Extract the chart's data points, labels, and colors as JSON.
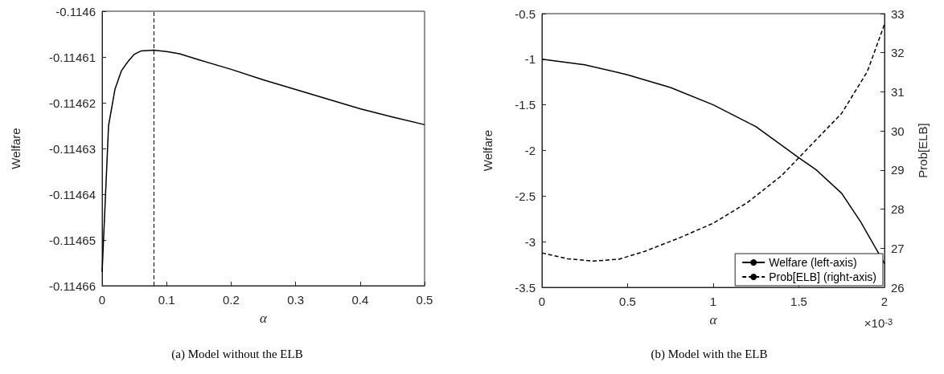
{
  "chart_data": [
    {
      "type": "line",
      "title": "(a) Model without the ELB",
      "xlabel": "α",
      "ylabel": "Welfare",
      "xlim": [
        0,
        0.5
      ],
      "xticks": [
        0,
        0.1,
        0.2,
        0.3,
        0.4,
        0.5
      ],
      "ylim": [
        -0.11466,
        -0.1146
      ],
      "yticks": [
        -0.11466,
        -0.11465,
        -0.11464,
        -0.11463,
        -0.11462,
        -0.11461,
        -0.1146
      ],
      "grid": false,
      "legend": false,
      "marker": "none",
      "series": [
        {
          "color": "#000000",
          "x": [
            0,
            0.01,
            0.02,
            0.03,
            0.04,
            0.05,
            0.06,
            0.08,
            0.1,
            0.12,
            0.15,
            0.2,
            0.25,
            0.3,
            0.35,
            0.4,
            0.45,
            0.5
          ],
          "values": [
            -0.114657,
            -0.114625,
            -0.114617,
            -0.114613,
            -0.114611,
            -0.1146094,
            -0.1146087,
            -0.1146085,
            -0.1146088,
            -0.1146093,
            -0.1146106,
            -0.1146127,
            -0.114615,
            -0.1146171,
            -0.1146192,
            -0.1146213,
            -0.1146231,
            -0.1146248
          ]
        }
      ],
      "ref_lines": [
        {
          "axis": "x",
          "value": 0.08,
          "color": "#000000",
          "line_style": "dashed"
        }
      ]
    },
    {
      "type": "line",
      "title": "(b) Model with the ELB",
      "xlabel": "α",
      "ylabel": "Welfare",
      "y2label": "Prob[ELB]",
      "xlim": [
        0,
        2
      ],
      "xticks": [
        0,
        0.5,
        1,
        1.5,
        2
      ],
      "ylim": [
        -3.5,
        -0.5
      ],
      "yticks": [
        -3.5,
        -3,
        -2.5,
        -2,
        -1.5,
        -1,
        -0.5
      ],
      "y2lim": [
        26,
        33
      ],
      "y2ticks": [
        26,
        27,
        28,
        29,
        30,
        31,
        32,
        33
      ],
      "grid": false,
      "legend": "bottom right",
      "marker": "none",
      "annotations": [
        "×10$^{-3}$"
      ],
      "series": [
        {
          "name": "Welfare (left-axis)",
          "color": "#000000",
          "line_style": "solid",
          "x": [
            0,
            0.25,
            0.5,
            0.75,
            1,
            1.25,
            1.5,
            1.6,
            1.75,
            1.86,
            2
          ],
          "values": [
            -1,
            -1.06,
            -1.17,
            -1.31,
            -1.5,
            -1.74,
            -2.08,
            -2.21,
            -2.47,
            -2.78,
            -3.24
          ]
        },
        {
          "name": "Prob[ELB] (right-axis)",
          "color": "#000000",
          "line_style": "dashed",
          "axis": "y2",
          "x": [
            0,
            0.15,
            0.3,
            0.45,
            0.6,
            0.8,
            1,
            1.2,
            1.4,
            1.6,
            1.75,
            1.9,
            2
          ],
          "values": [
            26.88,
            26.73,
            26.67,
            26.72,
            26.92,
            27.26,
            27.64,
            28.17,
            28.86,
            29.77,
            30.45,
            31.52,
            32.73
          ]
        }
      ]
    }
  ]
}
